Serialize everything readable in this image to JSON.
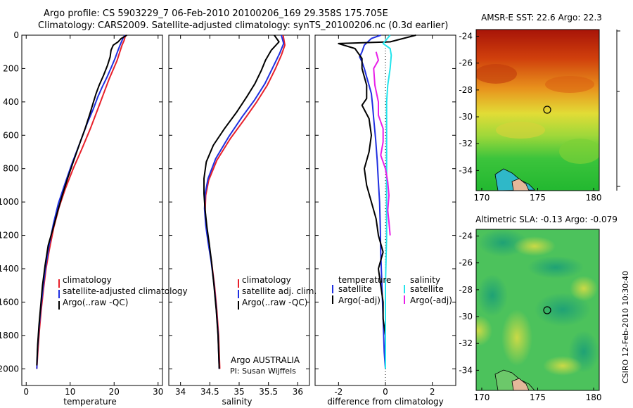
{
  "titles": {
    "line1": "Argo profile: CS 5903229_7 06-Feb-2010 20100206_169 29.358S 175.705E",
    "line2": "Climatology: CARS2009. Satellite-adjusted climatology: synTS_20100206.nc (0.3d earlier)"
  },
  "colors": {
    "climatology": "#e8202a",
    "satellite": "#1f2fe0",
    "argo": "#000000",
    "sat_salinity": "#22e4ec",
    "argo_salinity": "#e81ee8"
  },
  "chart_data": [
    {
      "type": "line",
      "id": "temperature",
      "xlabel": "temperature",
      "xlim": [
        -1,
        31
      ],
      "ylim": [
        0,
        2100
      ],
      "xticks": [
        0,
        10,
        20,
        30
      ],
      "yticks": [
        0,
        200,
        400,
        600,
        800,
        1000,
        1200,
        1400,
        1600,
        1800,
        2000
      ],
      "y_inverted": true,
      "legend": [
        "climatology",
        "satellite-adjusted climatology",
        "Argo(..raw -QC)"
      ],
      "series": [
        {
          "name": "climatology",
          "color": "#e8202a",
          "points": [
            [
              22.6,
              0
            ],
            [
              22.3,
              30
            ],
            [
              21.8,
              60
            ],
            [
              21.3,
              100
            ],
            [
              20.7,
              150
            ],
            [
              19.9,
              200
            ],
            [
              18.9,
              260
            ],
            [
              17.9,
              330
            ],
            [
              16.9,
              400
            ],
            [
              15.9,
              470
            ],
            [
              14.6,
              560
            ],
            [
              12.7,
              680
            ],
            [
              10.7,
              800
            ],
            [
              8.9,
              920
            ],
            [
              7.5,
              1030
            ],
            [
              6.3,
              1150
            ],
            [
              5.3,
              1280
            ],
            [
              4.5,
              1400
            ],
            [
              3.9,
              1530
            ],
            [
              3.4,
              1650
            ],
            [
              3.0,
              1770
            ],
            [
              2.7,
              1880
            ],
            [
              2.4,
              2000
            ]
          ]
        },
        {
          "name": "satellite-adjusted climatology",
          "color": "#1f2fe0",
          "points": [
            [
              22.4,
              0
            ],
            [
              22.0,
              20
            ],
            [
              21.5,
              50
            ],
            [
              20.9,
              90
            ],
            [
              20.2,
              140
            ],
            [
              19.4,
              190
            ],
            [
              18.4,
              250
            ],
            [
              17.3,
              310
            ],
            [
              16.3,
              370
            ],
            [
              15.3,
              440
            ],
            [
              14.0,
              520
            ],
            [
              12.3,
              640
            ],
            [
              10.4,
              770
            ],
            [
              8.7,
              900
            ],
            [
              7.3,
              1010
            ],
            [
              6.2,
              1130
            ],
            [
              5.2,
              1260
            ],
            [
              4.4,
              1390
            ],
            [
              3.8,
              1520
            ],
            [
              3.3,
              1640
            ],
            [
              2.9,
              1760
            ],
            [
              2.6,
              1870
            ],
            [
              2.4,
              2000
            ]
          ]
        },
        {
          "name": "Argo(..raw -QC)",
          "color": "#000000",
          "points": [
            [
              22.9,
              0
            ],
            [
              21.6,
              20
            ],
            [
              20.9,
              40
            ],
            [
              19.8,
              60
            ],
            [
              19.3,
              90
            ],
            [
              19.1,
              130
            ],
            [
              18.5,
              180
            ],
            [
              17.6,
              240
            ],
            [
              16.6,
              300
            ],
            [
              15.9,
              350
            ],
            [
              15.3,
              400
            ],
            [
              14.5,
              470
            ],
            [
              13.4,
              560
            ],
            [
              12.3,
              640
            ],
            [
              10.7,
              760
            ],
            [
              9.4,
              860
            ],
            [
              8.2,
              960
            ],
            [
              7.2,
              1050
            ],
            [
              6.2,
              1150
            ],
            [
              5.0,
              1260
            ],
            [
              4.3,
              1380
            ],
            [
              3.7,
              1500
            ],
            [
              3.3,
              1620
            ],
            [
              2.9,
              1740
            ],
            [
              2.6,
              1860
            ],
            [
              2.4,
              1980
            ]
          ]
        }
      ]
    },
    {
      "type": "line",
      "id": "salinity",
      "xlabel": "salinity",
      "xlim": [
        33.8,
        36.2
      ],
      "ylim": [
        0,
        2100
      ],
      "xticks": [
        34,
        34.5,
        35,
        35.5,
        36
      ],
      "y_inverted": true,
      "legend": [
        "climatology",
        "satellite adj. clim.",
        "Argo(..raw -QC)"
      ],
      "annotation": [
        "Argo AUSTRALIA",
        "PI: Susan Wijffels"
      ],
      "series": [
        {
          "name": "climatology",
          "color": "#e8202a",
          "points": [
            [
              35.75,
              0
            ],
            [
              35.78,
              60
            ],
            [
              35.72,
              120
            ],
            [
              35.62,
              200
            ],
            [
              35.48,
              300
            ],
            [
              35.3,
              400
            ],
            [
              35.1,
              500
            ],
            [
              34.85,
              620
            ],
            [
              34.62,
              750
            ],
            [
              34.48,
              870
            ],
            [
              34.43,
              960
            ],
            [
              34.42,
              1050
            ],
            [
              34.44,
              1150
            ],
            [
              34.48,
              1250
            ],
            [
              34.53,
              1360
            ],
            [
              34.58,
              1500
            ],
            [
              34.62,
              1650
            ],
            [
              34.65,
              1800
            ],
            [
              34.67,
              2000
            ]
          ]
        },
        {
          "name": "satellite adj. clim.",
          "color": "#1f2fe0",
          "points": [
            [
              35.72,
              0
            ],
            [
              35.76,
              50
            ],
            [
              35.69,
              110
            ],
            [
              35.58,
              190
            ],
            [
              35.44,
              290
            ],
            [
              35.26,
              390
            ],
            [
              35.05,
              490
            ],
            [
              34.82,
              610
            ],
            [
              34.6,
              740
            ],
            [
              34.47,
              860
            ],
            [
              34.42,
              950
            ],
            [
              34.41,
              1040
            ],
            [
              34.43,
              1140
            ],
            [
              34.47,
              1240
            ],
            [
              34.52,
              1350
            ],
            [
              34.57,
              1490
            ],
            [
              34.61,
              1640
            ],
            [
              34.64,
              1790
            ],
            [
              34.66,
              2000
            ]
          ]
        },
        {
          "name": "Argo(..raw -QC)",
          "color": "#000000",
          "points": [
            [
              35.6,
              0
            ],
            [
              35.68,
              40
            ],
            [
              35.55,
              90
            ],
            [
              35.45,
              150
            ],
            [
              35.38,
              210
            ],
            [
              35.27,
              290
            ],
            [
              35.13,
              370
            ],
            [
              34.96,
              460
            ],
            [
              34.75,
              560
            ],
            [
              34.56,
              660
            ],
            [
              34.44,
              760
            ],
            [
              34.4,
              860
            ],
            [
              34.4,
              950
            ],
            [
              34.42,
              1050
            ],
            [
              34.45,
              1150
            ],
            [
              34.49,
              1250
            ],
            [
              34.53,
              1360
            ],
            [
              34.57,
              1500
            ],
            [
              34.61,
              1650
            ],
            [
              34.64,
              1800
            ],
            [
              34.66,
              2000
            ]
          ]
        }
      ]
    },
    {
      "type": "line",
      "id": "difference",
      "xlabel": "difference from climatology",
      "xlim": [
        -3,
        3
      ],
      "ylim": [
        0,
        2100
      ],
      "xticks": [
        -2,
        0,
        2
      ],
      "y_inverted": true,
      "legend_left_title": "temperature",
      "legend_right_title": "salinity",
      "legend": [
        "satellite",
        "Argo(-adj)",
        "satellite",
        "Argo(-adj)"
      ],
      "series": [
        {
          "name": "satellite",
          "quantity": "temperature",
          "color": "#1f2fe0",
          "points": [
            [
              -0.2,
              0
            ],
            [
              -0.6,
              20
            ],
            [
              -0.9,
              60
            ],
            [
              -1.0,
              100
            ],
            [
              -1.1,
              130
            ],
            [
              -1.0,
              160
            ],
            [
              -0.9,
              200
            ],
            [
              -0.8,
              250
            ],
            [
              -0.7,
              300
            ],
            [
              -0.6,
              350
            ],
            [
              -0.55,
              420
            ],
            [
              -0.5,
              500
            ],
            [
              -0.42,
              620
            ],
            [
              -0.35,
              750
            ],
            [
              -0.3,
              880
            ],
            [
              -0.25,
              1000
            ],
            [
              -0.22,
              1150
            ],
            [
              -0.2,
              1300
            ],
            [
              -0.15,
              1500
            ],
            [
              -0.1,
              1700
            ],
            [
              -0.05,
              1900
            ],
            [
              0,
              2000
            ]
          ]
        },
        {
          "name": "Argo(-adj)",
          "quantity": "temperature",
          "color": "#000000",
          "points": [
            [
              1.3,
              0
            ],
            [
              0.2,
              40
            ],
            [
              -2.0,
              50
            ],
            [
              -1.3,
              80
            ],
            [
              -1.0,
              140
            ],
            [
              -1.0,
              200
            ],
            [
              -0.8,
              300
            ],
            [
              -0.8,
              380
            ],
            [
              -1.0,
              420
            ],
            [
              -0.7,
              500
            ],
            [
              -0.6,
              600
            ],
            [
              -0.7,
              700
            ],
            [
              -0.9,
              800
            ],
            [
              -0.8,
              900
            ],
            [
              -0.6,
              1000
            ],
            [
              -0.4,
              1100
            ],
            [
              -0.3,
              1200
            ],
            [
              -0.1,
              1300
            ],
            [
              -0.3,
              1400
            ],
            [
              -0.2,
              1500
            ],
            [
              -0.1,
              1600
            ],
            [
              -0.1,
              1700
            ],
            [
              0,
              1800
            ],
            [
              0,
              1900
            ],
            [
              0,
              2000
            ]
          ]
        },
        {
          "name": "satellite",
          "quantity": "salinity",
          "color": "#22e4ec",
          "points": [
            [
              0.2,
              0
            ],
            [
              -0.1,
              50
            ],
            [
              0.2,
              80
            ],
            [
              0.25,
              120
            ],
            [
              0.2,
              200
            ],
            [
              0.1,
              300
            ],
            [
              0.05,
              400
            ],
            [
              0.05,
              500
            ],
            [
              0.05,
              700
            ],
            [
              0.05,
              900
            ],
            [
              0.05,
              1200
            ],
            [
              0,
              1500
            ],
            [
              0,
              1800
            ],
            [
              0,
              2000
            ]
          ]
        },
        {
          "name": "Argo(-adj)",
          "quantity": "salinity",
          "color": "#e81ee8",
          "points": [
            [
              -0.4,
              100
            ],
            [
              -0.3,
              150
            ],
            [
              -0.5,
              200
            ],
            [
              -0.45,
              300
            ],
            [
              -0.3,
              400
            ],
            [
              -0.3,
              480
            ],
            [
              -0.1,
              560
            ],
            [
              -0.1,
              640
            ],
            [
              -0.2,
              720
            ],
            [
              0.0,
              800
            ],
            [
              0.1,
              880
            ],
            [
              0.15,
              960
            ],
            [
              0.1,
              1050
            ],
            [
              0.15,
              1120
            ],
            [
              0.2,
              1200
            ]
          ]
        }
      ]
    },
    {
      "type": "heatmap",
      "id": "sst-map",
      "title": "AMSR-E SST: 22.6 Argo: 22.3",
      "xlim": [
        169.5,
        180.5
      ],
      "ylim": [
        -35.5,
        -23.5
      ],
      "xticks": [
        170,
        175,
        180
      ],
      "yticks": [
        -24,
        -26,
        -28,
        -30,
        -32,
        -34
      ],
      "marker": [
        175.7,
        -29.36
      ]
    },
    {
      "type": "heatmap",
      "id": "sla-map",
      "title": "Altimetric SLA: -0.13 Argo: -0.079",
      "xlim": [
        169.5,
        180.5
      ],
      "ylim": [
        -35.5,
        -23.5
      ],
      "xticks": [
        170,
        175,
        180
      ],
      "yticks": [
        -24,
        -26,
        -28,
        -30,
        -32,
        -34
      ],
      "marker": [
        175.7,
        -29.36
      ]
    }
  ],
  "footer": {
    "stamp": "CSIRO 12-Feb-2010 10:30:40"
  }
}
